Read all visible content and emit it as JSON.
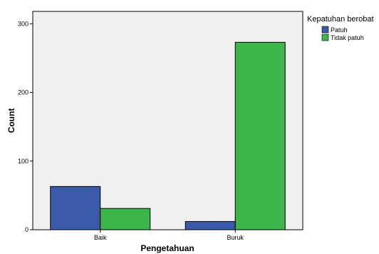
{
  "chart_data": {
    "type": "bar",
    "xlabel": "Pengetahuan",
    "ylabel": "Count",
    "categories": [
      "Baik",
      "Buruk"
    ],
    "series": [
      {
        "name": "Patuh",
        "color": "#3c5aaa",
        "values": [
          63,
          12
        ]
      },
      {
        "name": "Tidak patuh",
        "color": "#3cb54a",
        "values": [
          31,
          273
        ]
      }
    ],
    "ylim": [
      0,
      318
    ],
    "yticks": [
      0,
      100,
      200,
      300
    ],
    "grid": false,
    "legend": {
      "title": "Kepatuhan berobat",
      "position": "top-right-outside"
    }
  }
}
